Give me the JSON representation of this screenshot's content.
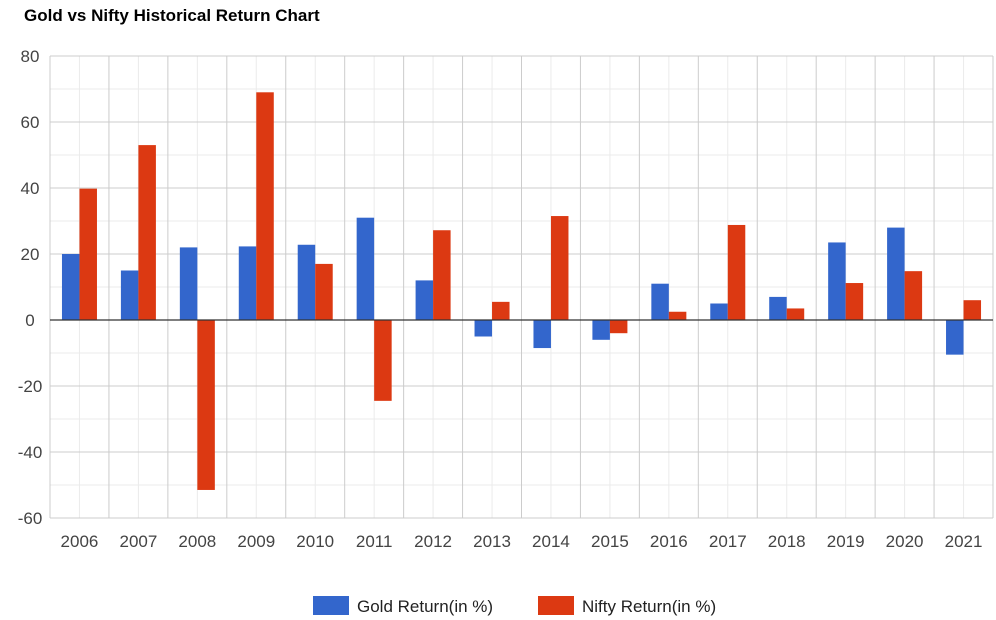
{
  "chart_data": {
    "type": "bar",
    "title": "Gold vs Nifty Historical Return Chart",
    "categories": [
      "2006",
      "2007",
      "2008",
      "2009",
      "2010",
      "2011",
      "2012",
      "2013",
      "2014",
      "2015",
      "2016",
      "2017",
      "2018",
      "2019",
      "2020",
      "2021"
    ],
    "series": [
      {
        "name": "Gold Return(in %)",
        "color": "#3366cc",
        "values": [
          20,
          15,
          22,
          22.3,
          22.8,
          31,
          12,
          -5,
          -8.5,
          -6,
          11,
          5,
          7,
          23.5,
          28,
          -10.5
        ]
      },
      {
        "name": "Nifty Return(in %)",
        "color": "#dc3912",
        "values": [
          39.8,
          53,
          -51.5,
          69,
          17,
          -24.5,
          27.2,
          5.5,
          31.5,
          -4,
          2.5,
          28.8,
          3.5,
          11.2,
          14.8,
          6
        ]
      }
    ],
    "ylim": [
      -60,
      80
    ],
    "yticks": [
      -60,
      -40,
      -20,
      0,
      20,
      40,
      60,
      80
    ],
    "ytick_labels": [
      "-60",
      "-40",
      "-20",
      "0",
      "20",
      "40",
      "60",
      "80"
    ],
    "grid": true,
    "legend_position": "bottom"
  }
}
